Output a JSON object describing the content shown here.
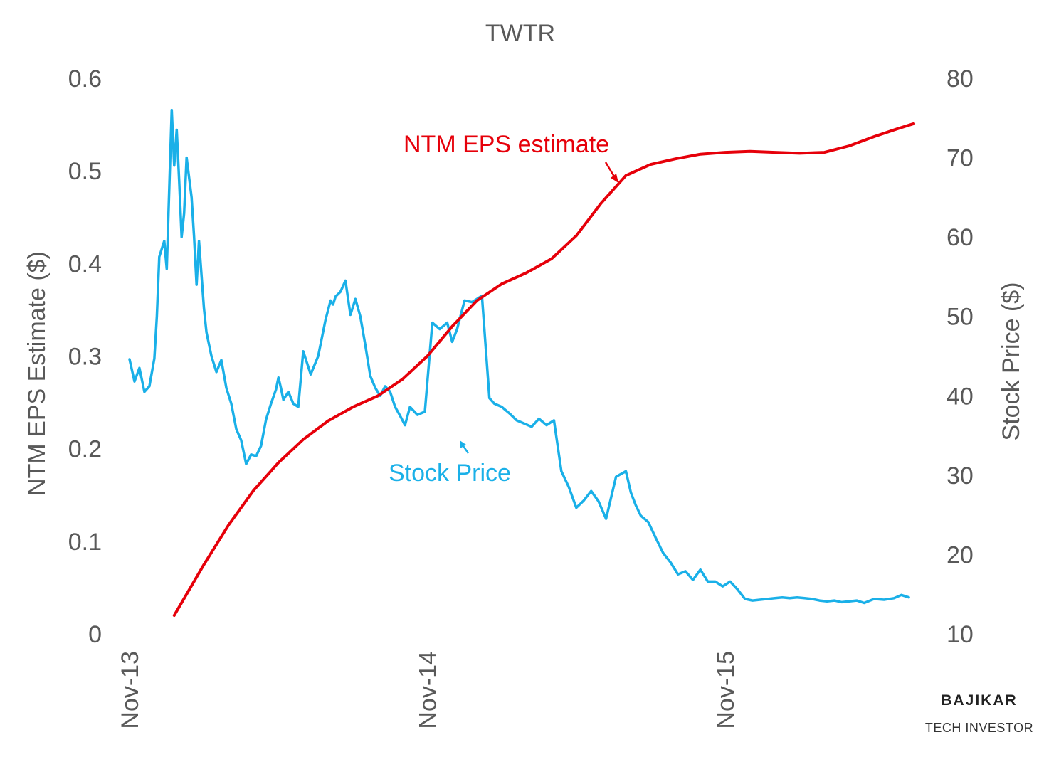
{
  "chart_data": {
    "type": "line",
    "title": "TWTR",
    "ylabel_left": "NTM EPS Estimate ($)",
    "ylabel_right": "Stock Price ($)",
    "ylim_left": [
      0,
      0.6
    ],
    "ylim_right": [
      10,
      80
    ],
    "left_ticks": [
      "0",
      "0.1",
      "0.2",
      "0.3",
      "0.4",
      "0.5",
      "0.6"
    ],
    "right_ticks": [
      "10",
      "20",
      "30",
      "40",
      "50",
      "60",
      "70",
      "80"
    ],
    "x_ticks": [
      {
        "label": "Nov-13",
        "month": 0
      },
      {
        "label": "Nov-14",
        "month": 12
      },
      {
        "label": "Nov-15",
        "month": 24
      }
    ],
    "x_range_months": [
      0,
      32
    ],
    "grid": false,
    "legend": "none",
    "colors": {
      "eps": "#e6000a",
      "price": "#1ab0e8",
      "text": "#595959"
    },
    "annotations": [
      {
        "text": "NTM EPS estimate",
        "series": "NTM EPS estimate"
      },
      {
        "text": "Stock Price",
        "series": "Stock Price"
      }
    ],
    "series": [
      {
        "name": "NTM EPS estimate",
        "axis": "left",
        "x": [
          1.8,
          3,
          4,
          5,
          6,
          7,
          8,
          9,
          10,
          11,
          12,
          13,
          14,
          15,
          16,
          17,
          18,
          19,
          20,
          21,
          22,
          23,
          24,
          25,
          26,
          27,
          28,
          29,
          30,
          31,
          31.6
        ],
        "values": [
          0.02,
          0.075,
          0.118,
          0.155,
          0.185,
          0.21,
          0.23,
          0.245,
          0.257,
          0.275,
          0.3,
          0.332,
          0.36,
          0.378,
          0.39,
          0.405,
          0.43,
          0.465,
          0.495,
          0.507,
          0.513,
          0.518,
          0.52,
          0.521,
          0.52,
          0.519,
          0.52,
          0.527,
          0.537,
          0.546,
          0.551
        ]
      },
      {
        "name": "Stock Price",
        "axis": "right",
        "x": [
          0,
          0.2,
          0.4,
          0.6,
          0.8,
          1.0,
          1.1,
          1.2,
          1.4,
          1.5,
          1.6,
          1.7,
          1.8,
          1.9,
          2.0,
          2.1,
          2.2,
          2.3,
          2.5,
          2.6,
          2.7,
          2.8,
          3.0,
          3.1,
          3.2,
          3.3,
          3.4,
          3.5,
          3.7,
          3.9,
          4.1,
          4.3,
          4.5,
          4.7,
          4.9,
          5.1,
          5.3,
          5.5,
          5.7,
          5.9,
          6.0,
          6.1,
          6.2,
          6.4,
          6.6,
          6.8,
          7.0,
          7.3,
          7.6,
          7.9,
          8.1,
          8.2,
          8.3,
          8.5,
          8.7,
          8.9,
          9.1,
          9.3,
          9.5,
          9.7,
          9.9,
          10.1,
          10.3,
          10.5,
          10.7,
          10.9,
          11.1,
          11.3,
          11.6,
          11.9,
          12.2,
          12.5,
          12.8,
          13.0,
          13.2,
          13.5,
          13.8,
          14.2,
          14.5,
          14.7,
          15.0,
          15.3,
          15.6,
          15.9,
          16.2,
          16.5,
          16.8,
          17.1,
          17.4,
          17.7,
          18.0,
          18.3,
          18.6,
          18.9,
          19.2,
          19.6,
          20.0,
          20.2,
          20.4,
          20.6,
          20.9,
          21.2,
          21.5,
          21.8,
          22.1,
          22.4,
          22.7,
          23.0,
          23.3,
          23.6,
          23.9,
          24.2,
          24.5,
          24.8,
          25.1,
          25.4,
          25.7,
          26.0,
          26.3,
          26.6,
          26.9,
          27.2,
          27.5,
          27.8,
          28.1,
          28.4,
          28.7,
          29.0,
          29.3,
          29.6,
          30.0,
          30.4,
          30.8,
          31.1,
          31.4
        ],
        "values": [
          44.6,
          41.8,
          43.5,
          40.5,
          41.2,
          44.7,
          50.0,
          57.5,
          59.5,
          56.0,
          66.0,
          76.0,
          69.0,
          73.5,
          67.0,
          60.0,
          63.0,
          70.0,
          65.0,
          60.0,
          54.0,
          59.5,
          51.0,
          48.0,
          46.5,
          45.0,
          44.0,
          43.0,
          44.5,
          41.0,
          39.0,
          35.8,
          34.4,
          31.4,
          32.6,
          32.4,
          33.7,
          37.0,
          39.0,
          40.8,
          42.3,
          41.0,
          39.5,
          40.5,
          39.0,
          38.6,
          45.6,
          42.7,
          45.0,
          49.6,
          52.0,
          51.5,
          52.5,
          53.1,
          54.5,
          50.2,
          52.2,
          50.0,
          46.4,
          42.5,
          41.0,
          40.0,
          41.2,
          40.5,
          38.6,
          37.5,
          36.3,
          38.6,
          37.6,
          38.0,
          49.2,
          48.4,
          49.2,
          46.8,
          48.4,
          52.0,
          51.8,
          52.6,
          39.7,
          39.0,
          38.6,
          37.8,
          36.9,
          36.5,
          36.1,
          37.1,
          36.3,
          36.9,
          30.5,
          28.5,
          25.9,
          26.8,
          28.0,
          26.7,
          24.5,
          29.8,
          30.5,
          27.8,
          26.2,
          24.9,
          24.1,
          22.1,
          20.2,
          19.0,
          17.5,
          17.9,
          16.8,
          18.1,
          16.6,
          16.6,
          16.0,
          16.6,
          15.6,
          14.4,
          14.2,
          14.3,
          14.4,
          14.5,
          14.6,
          14.5,
          14.6,
          14.5,
          14.4,
          14.2,
          14.1,
          14.2,
          14.0,
          14.1,
          14.2,
          13.9,
          14.4,
          14.3,
          14.5,
          14.9,
          14.6
        ]
      }
    ]
  },
  "brand": {
    "name": "BAJIKAR",
    "tagline": "TECH INVESTOR"
  }
}
